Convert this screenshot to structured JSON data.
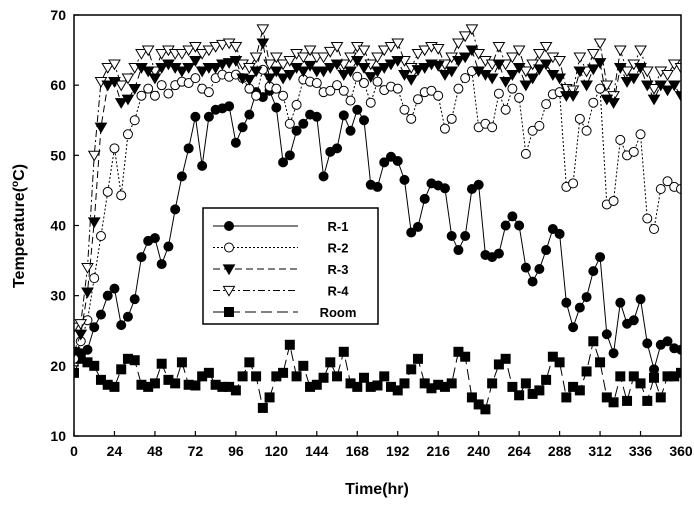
{
  "chart_data": {
    "type": "line",
    "xlabel": "Time(hr)",
    "ylabel": "Temperature(°C)",
    "ylabel_parts": {
      "pre": "Temperature(",
      "sup": "o",
      "post": "C)"
    },
    "xlim": [
      0,
      360
    ],
    "ylim": [
      10,
      70
    ],
    "xticks": [
      0,
      24,
      48,
      72,
      96,
      120,
      144,
      168,
      192,
      216,
      240,
      264,
      288,
      312,
      336,
      360
    ],
    "yticks": [
      10,
      20,
      30,
      40,
      50,
      60,
      70
    ],
    "grid": false,
    "legend_position": "center-left",
    "series": [
      {
        "name": "R-1",
        "marker": "circle-filled",
        "dash": "",
        "x": [
          0,
          4,
          8,
          12,
          16,
          20,
          24,
          28,
          32,
          36,
          40,
          44,
          48,
          52,
          56,
          60,
          64,
          68,
          72,
          76,
          80,
          84,
          88,
          92,
          96,
          100,
          104,
          108,
          112,
          116,
          120,
          124,
          128,
          132,
          136,
          140,
          144,
          148,
          152,
          156,
          160,
          164,
          168,
          172,
          176,
          180,
          184,
          188,
          192,
          196,
          200,
          204,
          208,
          212,
          216,
          220,
          224,
          228,
          232,
          236,
          240,
          244,
          248,
          252,
          256,
          260,
          264,
          268,
          272,
          276,
          280,
          284,
          288,
          292,
          296,
          300,
          304,
          308,
          312,
          316,
          320,
          324,
          328,
          332,
          336,
          340,
          344,
          348,
          352,
          356,
          360
        ],
        "values": [
          21.5,
          21.8,
          22.3,
          25.5,
          27.3,
          30,
          31,
          25.8,
          27,
          29.5,
          35.5,
          37.8,
          38.2,
          34.5,
          37,
          42.3,
          47,
          51,
          55.5,
          48.5,
          55.5,
          56.5,
          56.7,
          57,
          51.8,
          54,
          55.8,
          59,
          58.3,
          59.2,
          56.8,
          49,
          50,
          53.5,
          54.5,
          55.8,
          55.5,
          47,
          50.5,
          51,
          55.7,
          53.5,
          56.5,
          55,
          45.8,
          45.5,
          49,
          49.8,
          49.2,
          46.5,
          39,
          39.8,
          43.8,
          46,
          45.7,
          45.3,
          38.5,
          36.5,
          38.5,
          45.2,
          45.8,
          35.8,
          35.5,
          36,
          40,
          41.3,
          40,
          34,
          32,
          33.8,
          36.5,
          39.5,
          38.8,
          29,
          25.5,
          28.3,
          29.8,
          33.5,
          35.5,
          24.5,
          21.8,
          29,
          26,
          26.5,
          29.5,
          23.2,
          19.5,
          23,
          23.5,
          22.5,
          22.3
        ]
      },
      {
        "name": "R-2",
        "marker": "circle-open",
        "dash": "2,2",
        "x": [
          0,
          4,
          8,
          12,
          16,
          20,
          24,
          28,
          32,
          36,
          40,
          44,
          48,
          52,
          56,
          60,
          64,
          68,
          72,
          76,
          80,
          84,
          88,
          92,
          96,
          100,
          104,
          108,
          112,
          116,
          120,
          124,
          128,
          132,
          136,
          140,
          144,
          148,
          152,
          156,
          160,
          164,
          168,
          172,
          176,
          180,
          184,
          188,
          192,
          196,
          200,
          204,
          208,
          212,
          216,
          220,
          224,
          228,
          232,
          236,
          240,
          244,
          248,
          252,
          256,
          260,
          264,
          268,
          272,
          276,
          280,
          284,
          288,
          292,
          296,
          300,
          304,
          308,
          312,
          316,
          320,
          324,
          328,
          332,
          336,
          340,
          344,
          348,
          352,
          356,
          360
        ],
        "values": [
          21,
          23.5,
          26.5,
          32.5,
          38.5,
          44.8,
          51,
          44.3,
          53,
          55,
          58.5,
          59.5,
          58.5,
          60,
          58.8,
          60,
          60.5,
          60.3,
          61,
          59.5,
          59,
          61,
          61.5,
          61.2,
          61.5,
          61,
          59.5,
          58.5,
          62.2,
          59.8,
          59.5,
          58.5,
          54.5,
          57.2,
          60.8,
          60.5,
          60.3,
          59,
          59.2,
          60,
          59.2,
          57.8,
          61.2,
          60.3,
          57.5,
          60.5,
          59.3,
          59.8,
          59.5,
          56.5,
          55.2,
          58,
          59,
          59.2,
          58.5,
          53.8,
          55.2,
          59.5,
          61,
          62,
          54,
          54.5,
          54,
          58.8,
          56.5,
          59.5,
          58.2,
          50.2,
          53.5,
          54.2,
          57.3,
          58.7,
          59,
          45.5,
          46,
          55.2,
          53.5,
          57.5,
          59.5,
          43,
          43.5,
          52.2,
          50,
          50.5,
          53,
          41,
          39.5,
          45.2,
          46.3,
          45.5,
          45.2
        ]
      },
      {
        "name": "R-3",
        "marker": "triangle-down-filled",
        "dash": "7,4",
        "x": [
          0,
          4,
          8,
          12,
          16,
          20,
          24,
          28,
          32,
          36,
          40,
          44,
          48,
          52,
          56,
          60,
          64,
          68,
          72,
          76,
          80,
          84,
          88,
          92,
          96,
          100,
          104,
          108,
          112,
          116,
          120,
          124,
          128,
          132,
          136,
          140,
          144,
          148,
          152,
          156,
          160,
          164,
          168,
          172,
          176,
          180,
          184,
          188,
          192,
          196,
          200,
          204,
          208,
          212,
          216,
          220,
          224,
          228,
          232,
          236,
          240,
          244,
          248,
          252,
          256,
          260,
          264,
          268,
          272,
          276,
          280,
          284,
          288,
          292,
          296,
          300,
          304,
          308,
          312,
          316,
          320,
          324,
          328,
          332,
          336,
          340,
          344,
          348,
          352,
          356,
          360
        ],
        "values": [
          22,
          24.5,
          30.5,
          40.5,
          54,
          60,
          60.5,
          57.5,
          58,
          59.5,
          62.5,
          62,
          61,
          62.5,
          63,
          62.5,
          62,
          62.5,
          63.5,
          62,
          62.5,
          62.5,
          63,
          63.2,
          63.5,
          61,
          60.8,
          62,
          66,
          61,
          62,
          61,
          61.5,
          62.5,
          62,
          62.8,
          62,
          62,
          62.5,
          63,
          61.5,
          62,
          63.5,
          62.5,
          61.2,
          62,
          62.5,
          63,
          63.5,
          61.5,
          60.8,
          62.2,
          62.5,
          63,
          62.8,
          61.5,
          62,
          63.5,
          64,
          65,
          62,
          61.5,
          61,
          63,
          60.5,
          61.5,
          62.5,
          60,
          61,
          62.3,
          63,
          61.5,
          61,
          58.5,
          58.5,
          62,
          60,
          62.3,
          63.2,
          58,
          57.5,
          62.5,
          60.5,
          61,
          62.5,
          60,
          58,
          60,
          59.3,
          60,
          58.5
        ]
      },
      {
        "name": "R-4",
        "marker": "triangle-down-open",
        "dash": "7,3,2,3",
        "x": [
          0,
          4,
          8,
          12,
          16,
          20,
          24,
          28,
          32,
          36,
          40,
          44,
          48,
          52,
          56,
          60,
          64,
          68,
          72,
          76,
          80,
          84,
          88,
          92,
          96,
          100,
          104,
          108,
          112,
          116,
          120,
          124,
          128,
          132,
          136,
          140,
          144,
          148,
          152,
          156,
          160,
          164,
          168,
          172,
          176,
          180,
          184,
          188,
          192,
          196,
          200,
          204,
          208,
          212,
          216,
          220,
          224,
          228,
          232,
          236,
          240,
          244,
          248,
          252,
          256,
          260,
          264,
          268,
          272,
          276,
          280,
          284,
          288,
          292,
          296,
          300,
          304,
          308,
          312,
          316,
          320,
          324,
          328,
          332,
          336,
          340,
          344,
          348,
          352,
          356,
          360
        ],
        "values": [
          25.5,
          26,
          34,
          50,
          60.5,
          62.5,
          63,
          60,
          61,
          62.5,
          64.5,
          65,
          62,
          64.5,
          65,
          64.5,
          64.5,
          65,
          65.5,
          64.5,
          65,
          65.5,
          65.8,
          66,
          65.5,
          63,
          62.5,
          64,
          68,
          63,
          64,
          63,
          63.5,
          64.5,
          64,
          65,
          64,
          64,
          64.8,
          65.5,
          63,
          64,
          65.5,
          65,
          63,
          64,
          65,
          65.5,
          66,
          63.5,
          62.5,
          64.5,
          65,
          65.5,
          65.2,
          63,
          64,
          66,
          67,
          68,
          64.5,
          63.5,
          63,
          65.5,
          63,
          64,
          65,
          62,
          63,
          64.5,
          65.5,
          64,
          63.5,
          59.5,
          59.3,
          64,
          62,
          64.5,
          66,
          60,
          58.5,
          65,
          62,
          63,
          65,
          62,
          59.5,
          62,
          61.5,
          63,
          62.5
        ]
      },
      {
        "name": "Room",
        "marker": "square-filled",
        "dash": "11,5",
        "x": [
          0,
          4,
          8,
          12,
          16,
          20,
          24,
          28,
          32,
          36,
          40,
          44,
          48,
          52,
          56,
          60,
          64,
          68,
          72,
          76,
          80,
          84,
          88,
          92,
          96,
          100,
          104,
          108,
          112,
          116,
          120,
          124,
          128,
          132,
          136,
          140,
          144,
          148,
          152,
          156,
          160,
          164,
          168,
          172,
          176,
          180,
          184,
          188,
          192,
          196,
          200,
          204,
          208,
          212,
          216,
          220,
          224,
          228,
          232,
          236,
          240,
          244,
          248,
          252,
          256,
          260,
          264,
          268,
          272,
          276,
          280,
          284,
          288,
          292,
          296,
          300,
          304,
          308,
          312,
          316,
          320,
          324,
          328,
          332,
          336,
          340,
          344,
          348,
          352,
          356,
          360
        ],
        "values": [
          19,
          21,
          20.5,
          20,
          18,
          17.3,
          17,
          19.5,
          21,
          20.8,
          17.3,
          17,
          17.5,
          20.3,
          18,
          17.5,
          20.5,
          17.3,
          17.2,
          18.5,
          19,
          17.3,
          17,
          17,
          16.5,
          18.5,
          20.5,
          18.5,
          14,
          15.5,
          18.5,
          19,
          23,
          18.5,
          20,
          17,
          17.3,
          18.3,
          20.5,
          18.5,
          22,
          17.5,
          17,
          18.3,
          17,
          17.2,
          18.5,
          17,
          16.5,
          17.5,
          19.5,
          21,
          17.5,
          16.8,
          17.3,
          17,
          17.5,
          22,
          21.3,
          15.5,
          14.5,
          13.8,
          17.5,
          20.2,
          21,
          17,
          15.8,
          17.5,
          16,
          16.5,
          18,
          21.3,
          20.5,
          15.5,
          17,
          16.5,
          19.2,
          23.5,
          20.5,
          15.5,
          14.8,
          18.5,
          15,
          18.5,
          17.5,
          15,
          18.3,
          15.5,
          18.5,
          18.5,
          19
        ]
      }
    ]
  }
}
